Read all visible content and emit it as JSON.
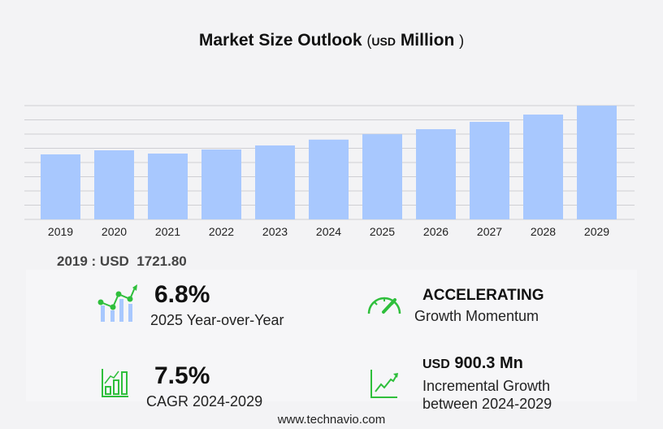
{
  "title": {
    "main": "Market Size Outlook",
    "open": "(",
    "unit": "USD",
    "unit_word": "Million",
    "close": ")"
  },
  "chart_data": {
    "type": "bar",
    "categories": [
      "2019",
      "2020",
      "2021",
      "2022",
      "2023",
      "2024",
      "2025",
      "2026",
      "2027",
      "2028",
      "2029"
    ],
    "values": [
      1721.8,
      1829,
      1743,
      1851,
      1958,
      2113,
      2257,
      2389,
      2583,
      2776,
      3013
    ],
    "ylabel": "",
    "xlabel": "",
    "ylim": [
      0,
      3013
    ],
    "grid": true,
    "bar_color": "#a8c8fe"
  },
  "base_year": {
    "label": "2019 : USD",
    "value": "1721.80"
  },
  "stats": {
    "yoy": {
      "value": "6.8%",
      "label": "2025 Year-over-Year",
      "icon": "trend-bar-chart-icon"
    },
    "momentum": {
      "value": "ACCELERATING",
      "label": "Growth Momentum",
      "icon": "speedometer-icon"
    },
    "cagr": {
      "value": "7.5%",
      "label": "CAGR 2024-2029",
      "icon": "growth-bars-icon"
    },
    "incremental": {
      "unit": "USD",
      "value": "900.3 Mn",
      "label1": "Incremental Growth",
      "label2": "between 2024-2029",
      "icon": "line-chart-icon"
    }
  },
  "accent": "#2fbf3c",
  "footer": "www.technavio.com"
}
